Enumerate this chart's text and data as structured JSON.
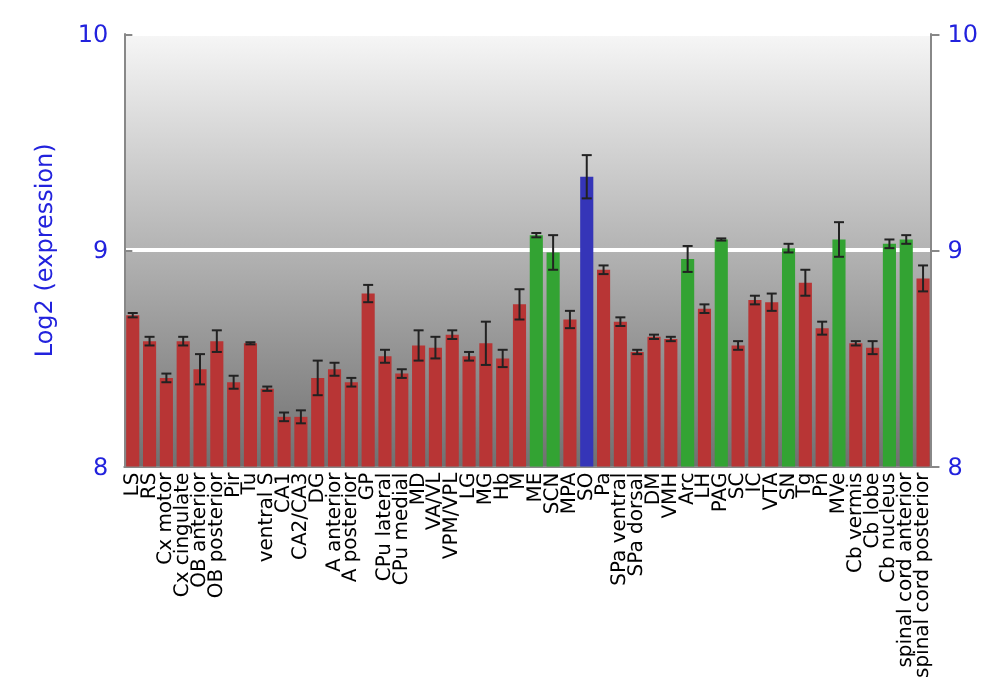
{
  "chart_data": {
    "type": "bar",
    "ylabel": "Log2 (expression)",
    "categories": [
      "LS",
      "RS",
      "Cx motor",
      "Cx cingulate",
      "OB anterior",
      "OB posterior",
      "Pir",
      "Tu",
      "ventral S",
      "CA1",
      "CA2/CA3",
      "DG",
      "A anterior",
      "A posterior",
      "GP",
      "CPu lateral",
      "CPu medial",
      "MD",
      "VA/VL",
      "VPM/VPL",
      "LG",
      "MG",
      "Hb",
      "M",
      "ME",
      "SCN",
      "MPA",
      "SO",
      "Pa",
      "SPa ventral",
      "SPa dorsal",
      "DM",
      "VMH",
      "Arc",
      "LH",
      "PAG",
      "SC",
      "IC",
      "VTA",
      "SN",
      "Tg",
      "Pn",
      "MVe",
      "Cb vermis",
      "Cb lobe",
      "Cb nucleus",
      "spinal cord anterior",
      "spinal cord posterior"
    ],
    "values": [
      8.7,
      8.58,
      8.41,
      8.58,
      8.45,
      8.58,
      8.39,
      8.57,
      8.36,
      8.23,
      8.23,
      8.41,
      8.45,
      8.39,
      8.8,
      8.51,
      8.43,
      8.56,
      8.55,
      8.61,
      8.51,
      8.57,
      8.5,
      8.75,
      9.07,
      8.99,
      8.68,
      9.34,
      8.91,
      8.67,
      8.53,
      8.6,
      8.59,
      8.96,
      8.73,
      9.05,
      8.56,
      8.77,
      8.76,
      9.01,
      8.85,
      8.64,
      9.05,
      8.57,
      8.55,
      9.03,
      9.05,
      8.87
    ],
    "errors": [
      0.01,
      0.02,
      0.02,
      0.02,
      0.07,
      0.05,
      0.03,
      0.005,
      0.01,
      0.02,
      0.03,
      0.08,
      0.03,
      0.02,
      0.04,
      0.03,
      0.02,
      0.07,
      0.05,
      0.02,
      0.02,
      0.1,
      0.04,
      0.07,
      0.01,
      0.08,
      0.04,
      0.1,
      0.02,
      0.02,
      0.01,
      0.01,
      0.01,
      0.06,
      0.02,
      0.005,
      0.02,
      0.02,
      0.04,
      0.02,
      0.06,
      0.03,
      0.08,
      0.01,
      0.03,
      0.02,
      0.02,
      0.06
    ],
    "colors": [
      "#b83535",
      "#b83535",
      "#b83535",
      "#b83535",
      "#b83535",
      "#b83535",
      "#b83535",
      "#b83535",
      "#b83535",
      "#b83535",
      "#b83535",
      "#b83535",
      "#b83535",
      "#b83535",
      "#b83535",
      "#b83535",
      "#b83535",
      "#b83535",
      "#b83535",
      "#b83535",
      "#b83535",
      "#b83535",
      "#b83535",
      "#b83535",
      "#33a333",
      "#33a333",
      "#b83535",
      "#3535b8",
      "#b83535",
      "#b83535",
      "#b83535",
      "#b83535",
      "#b83535",
      "#33a333",
      "#b83535",
      "#33a333",
      "#b83535",
      "#b83535",
      "#b83535",
      "#33a333",
      "#b83535",
      "#b83535",
      "#33a333",
      "#b83535",
      "#b83535",
      "#33a333",
      "#33a333",
      "#b83535"
    ],
    "ylim": [
      8,
      10
    ],
    "yticks": [
      8,
      9,
      10
    ],
    "y2lim": [
      8,
      10
    ],
    "y2ticks": [
      8,
      9,
      10
    ],
    "grid": "y"
  }
}
